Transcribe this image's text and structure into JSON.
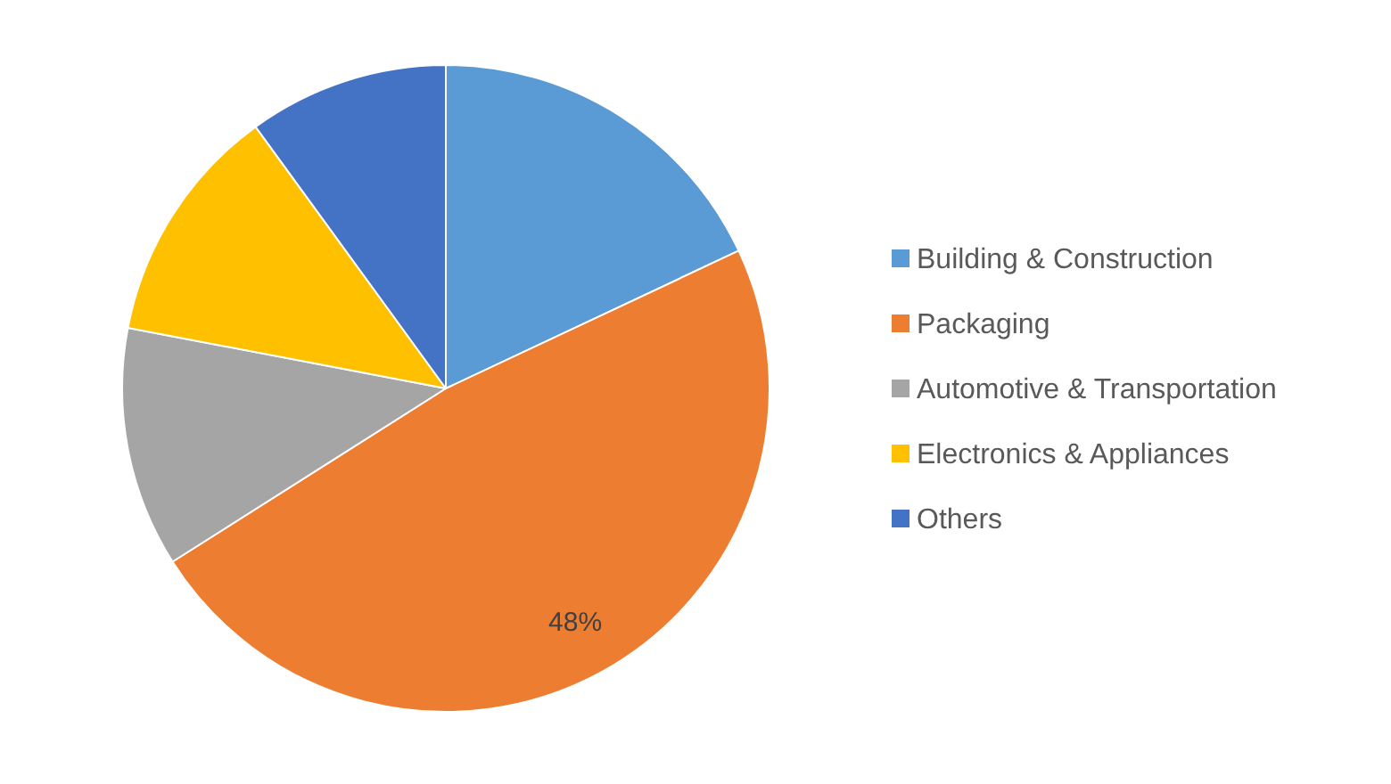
{
  "chart_data": {
    "type": "pie",
    "categories": [
      "Building & Construction",
      "Packaging",
      "Automotive & Transportation",
      "Electronics & Appliances",
      "Others"
    ],
    "values": [
      18,
      48,
      12,
      12,
      10
    ],
    "colors": [
      "#5b9bd5",
      "#ed7d31",
      "#a5a5a5",
      "#ffc000",
      "#4472c4"
    ],
    "value_labels": [
      null,
      "48%",
      null,
      null,
      null
    ],
    "legend": "right"
  }
}
